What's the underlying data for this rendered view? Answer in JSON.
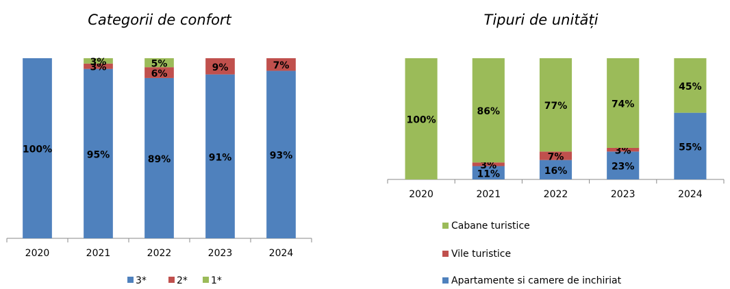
{
  "chart_data": [
    {
      "type": "stacked_bar",
      "title": "Categorii de confort",
      "categories": [
        "2020",
        "2021",
        "2022",
        "2023",
        "2024"
      ],
      "series": [
        {
          "name": "3*",
          "color": "#4f81bd",
          "values": [
            100,
            95,
            89,
            91,
            93
          ],
          "value_labels": [
            "100%",
            "95%",
            "89%",
            "91%",
            "93%"
          ]
        },
        {
          "name": "2*",
          "color": "#c0504d",
          "values": [
            null,
            3,
            6,
            9,
            7
          ],
          "value_labels": [
            null,
            "3%",
            "6%",
            "9%",
            "7%"
          ]
        },
        {
          "name": "1*",
          "color": "#9bbb59",
          "values": [
            null,
            3,
            5,
            null,
            null
          ],
          "value_labels": [
            null,
            "3%",
            "5%",
            null,
            null
          ]
        }
      ],
      "legend": "bottom"
    },
    {
      "type": "stacked_bar",
      "title": "Tipuri de unități",
      "categories": [
        "2020",
        "2021",
        "2022",
        "2023",
        "2024"
      ],
      "series": [
        {
          "name": "Apartamente si camere de inchiriat",
          "color": "#4f81bd",
          "values": [
            null,
            11,
            16,
            23,
            55
          ],
          "value_labels": [
            null,
            "11%",
            "16%",
            "23%",
            "55%"
          ]
        },
        {
          "name": "Vile turistice",
          "color": "#c0504d",
          "values": [
            null,
            3,
            7,
            3,
            null
          ],
          "value_labels": [
            null,
            "3%",
            "7%",
            "3%",
            null
          ]
        },
        {
          "name": "Cabane turistice",
          "color": "#9bbb59",
          "values": [
            100,
            86,
            77,
            74,
            45
          ],
          "value_labels": [
            "100%",
            "86%",
            "77%",
            "74%",
            "45%"
          ]
        }
      ],
      "legend": "bottom-vertical"
    }
  ]
}
